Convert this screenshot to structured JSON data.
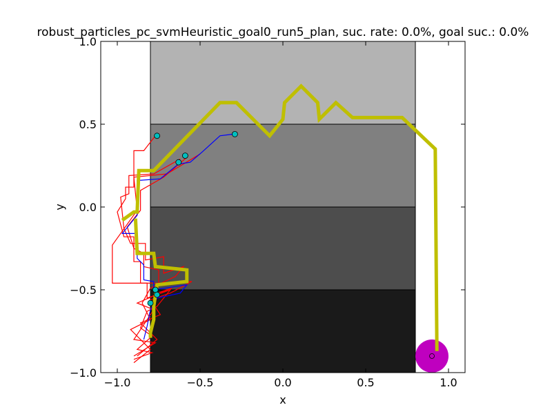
{
  "chart_data": {
    "type": "scatter",
    "title": "robust_particles_pc_svmHeuristic_goal0_run5_plan, suc. rate: 0.0%, goal suc.: 0.0%",
    "xlabel": "x",
    "ylabel": "y",
    "xlim": [
      -1.1,
      1.1
    ],
    "ylim": [
      -1.0,
      1.0
    ],
    "x_ticks": [
      "−1.0",
      "−0.5",
      "0.0",
      "0.5",
      "1.0"
    ],
    "y_ticks": [
      "−1.0",
      "−0.5",
      "0.0",
      "0.5",
      "1.0"
    ],
    "x_tick_values": [
      -1.0,
      -0.5,
      0.0,
      0.5,
      1.0
    ],
    "y_tick_values": [
      -1.0,
      -0.5,
      0.0,
      0.5,
      1.0
    ],
    "grid": false,
    "regions": [
      {
        "x": [
          -0.8,
          0.8
        ],
        "y": [
          0.5,
          1.0
        ],
        "color": "#b3b3b3"
      },
      {
        "x": [
          -0.8,
          0.8
        ],
        "y": [
          0.0,
          0.5
        ],
        "color": "#808080"
      },
      {
        "x": [
          -0.8,
          0.8
        ],
        "y": [
          -0.5,
          0.0
        ],
        "color": "#4d4d4d"
      },
      {
        "x": [
          -0.8,
          0.8
        ],
        "y": [
          -1.0,
          -0.5
        ],
        "color": "#1a1a1a"
      }
    ],
    "goal": {
      "x": 0.9,
      "y": -0.9,
      "radius": 0.1,
      "color": "#bf00bf"
    },
    "plan_path": {
      "color": "#bfbf00",
      "points": [
        [
          -0.97,
          -0.08
        ],
        [
          -0.9,
          -0.03
        ],
        [
          -0.88,
          -0.03
        ],
        [
          -0.87,
          0.22
        ],
        [
          -0.78,
          0.22
        ],
        [
          -0.38,
          0.63
        ],
        [
          -0.28,
          0.63
        ],
        [
          -0.08,
          0.43
        ],
        [
          0.0,
          0.53
        ],
        [
          0.01,
          0.63
        ],
        [
          0.11,
          0.73
        ],
        [
          0.21,
          0.63
        ],
        [
          0.22,
          0.53
        ],
        [
          0.32,
          0.63
        ],
        [
          0.42,
          0.54
        ],
        [
          0.72,
          0.54
        ],
        [
          0.92,
          0.35
        ],
        [
          0.93,
          -0.87
        ]
      ]
    },
    "plan_path_lower": {
      "color": "#bfbf00",
      "points": [
        [
          -0.89,
          -0.07
        ],
        [
          -0.88,
          -0.28
        ],
        [
          -0.78,
          -0.28
        ],
        [
          -0.77,
          -0.36
        ],
        [
          -0.58,
          -0.38
        ],
        [
          -0.58,
          -0.45
        ],
        [
          -0.76,
          -0.47
        ],
        [
          -0.78,
          -0.6
        ],
        [
          -0.78,
          -0.68
        ],
        [
          -0.8,
          -0.76
        ],
        [
          -0.8,
          -0.79
        ]
      ]
    },
    "blue_path": {
      "color": "#0000ff",
      "points": [
        [
          -0.3,
          0.44
        ],
        [
          -0.38,
          0.43
        ],
        [
          -0.49,
          0.33
        ],
        [
          -0.56,
          0.27
        ],
        [
          -0.63,
          0.26
        ],
        [
          -0.74,
          0.17
        ],
        [
          -0.88,
          0.16
        ],
        [
          -0.88,
          -0.05
        ],
        [
          -0.97,
          -0.16
        ],
        [
          -0.88,
          -0.16
        ],
        [
          -0.88,
          -0.31
        ],
        [
          -0.84,
          -0.35
        ],
        [
          -0.84,
          -0.44
        ],
        [
          -0.78,
          -0.45
        ],
        [
          -0.78,
          -0.5
        ],
        [
          -0.58,
          -0.47
        ],
        [
          -0.62,
          -0.52
        ],
        [
          -0.76,
          -0.55
        ],
        [
          -0.8,
          -0.62
        ],
        [
          -0.82,
          -0.72
        ],
        [
          -0.84,
          -0.8
        ]
      ]
    },
    "red_paths": [
      {
        "color": "#ff0000",
        "points": [
          [
            -0.77,
            0.43
          ],
          [
            -0.84,
            0.34
          ],
          [
            -0.9,
            0.34
          ],
          [
            -0.9,
            0.12
          ],
          [
            -0.95,
            0.12
          ],
          [
            -0.95,
            0.05
          ],
          [
            -1.0,
            -0.03
          ],
          [
            -0.96,
            -0.18
          ],
          [
            -0.9,
            -0.18
          ],
          [
            -0.9,
            -0.33
          ],
          [
            -0.86,
            -0.33
          ],
          [
            -0.86,
            -0.46
          ],
          [
            -0.76,
            -0.46
          ],
          [
            -0.76,
            -0.52
          ],
          [
            -0.67,
            -0.49
          ],
          [
            -0.88,
            -0.58
          ],
          [
            -0.78,
            -0.62
          ],
          [
            -0.9,
            -0.8
          ],
          [
            -0.77,
            -0.82
          ],
          [
            -0.9,
            -0.9
          ]
        ]
      },
      {
        "color": "#ff0000",
        "points": [
          [
            -0.5,
            0.32
          ],
          [
            -0.7,
            0.2
          ],
          [
            -0.9,
            0.18
          ],
          [
            -0.88,
            -0.02
          ],
          [
            -1.03,
            -0.23
          ],
          [
            -1.03,
            -0.46
          ],
          [
            -0.82,
            -0.46
          ],
          [
            -0.82,
            -0.55
          ],
          [
            -0.68,
            -0.5
          ],
          [
            -0.76,
            -0.6
          ],
          [
            -0.82,
            -0.63
          ],
          [
            -0.86,
            -0.73
          ],
          [
            -0.79,
            -0.78
          ],
          [
            -0.88,
            -0.86
          ],
          [
            -0.79,
            -0.88
          ],
          [
            -0.9,
            -0.92
          ]
        ]
      },
      {
        "color": "#ff0000",
        "points": [
          [
            -0.62,
            0.29
          ],
          [
            -0.78,
            0.2
          ],
          [
            -0.93,
            0.19
          ],
          [
            -0.93,
            0.08
          ],
          [
            -0.98,
            0.06
          ],
          [
            -0.96,
            -0.13
          ],
          [
            -0.92,
            -0.22
          ],
          [
            -0.83,
            -0.22
          ],
          [
            -0.83,
            -0.32
          ],
          [
            -0.72,
            -0.3
          ],
          [
            -0.72,
            -0.4
          ],
          [
            -0.6,
            -0.36
          ],
          [
            -0.65,
            -0.42
          ],
          [
            -0.8,
            -0.49
          ],
          [
            -0.85,
            -0.58
          ],
          [
            -0.8,
            -0.68
          ],
          [
            -0.92,
            -0.74
          ],
          [
            -0.8,
            -0.86
          ],
          [
            -0.9,
            -0.94
          ]
        ]
      },
      {
        "color": "#ff0000",
        "points": [
          [
            -0.58,
            0.3
          ],
          [
            -0.72,
            0.18
          ],
          [
            -0.86,
            0.1
          ],
          [
            -0.86,
            -0.02
          ],
          [
            -0.94,
            -0.12
          ],
          [
            -0.9,
            -0.25
          ],
          [
            -0.84,
            -0.28
          ],
          [
            -0.84,
            -0.36
          ],
          [
            -0.75,
            -0.38
          ],
          [
            -0.75,
            -0.46
          ],
          [
            -0.55,
            -0.45
          ],
          [
            -0.68,
            -0.52
          ],
          [
            -0.8,
            -0.56
          ],
          [
            -0.74,
            -0.65
          ],
          [
            -0.86,
            -0.7
          ],
          [
            -0.76,
            -0.8
          ],
          [
            -0.88,
            -0.9
          ]
        ]
      }
    ],
    "start_points": [
      {
        "x": -0.76,
        "y": 0.43
      },
      {
        "x": -0.29,
        "y": 0.44
      },
      {
        "x": -0.59,
        "y": 0.31
      },
      {
        "x": -0.63,
        "y": 0.27
      },
      {
        "x": -0.77,
        "y": -0.5
      },
      {
        "x": -0.76,
        "y": -0.53
      },
      {
        "x": -0.8,
        "y": -0.58
      }
    ],
    "start_color": "#00bfbf",
    "goal_marker": {
      "x": 0.9,
      "y": -0.9
    }
  }
}
